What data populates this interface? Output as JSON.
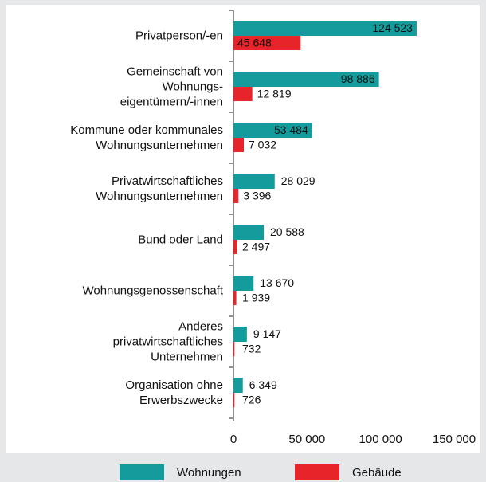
{
  "chart_data": {
    "type": "bar",
    "orientation": "horizontal",
    "categories": [
      "Privatperson/-en",
      "Gemeinschaft von\nWohnungs-\neigentümern/-innen",
      "Kommune oder kommunales\nWohnungsunternehmen",
      "Privatwirtschaftliches\nWohnungsunternehmen",
      "Bund oder Land",
      "Wohnungsgenossenschaft",
      "Anderes\nprivatwirtschaftliches\nUnternehmen",
      "Organisation ohne\nErwerbszwecke"
    ],
    "series": [
      {
        "name": "Wohnungen",
        "color": "#149c9c",
        "values": [
          124523,
          98886,
          53484,
          28029,
          20588,
          13670,
          9147,
          6349
        ],
        "value_labels": [
          "124 523",
          "98 886",
          "53 484",
          "28 029",
          "20 588",
          "13 670",
          "9 147",
          "6 349"
        ]
      },
      {
        "name": "Gebäude",
        "color": "#e8242b",
        "values": [
          45648,
          12819,
          7032,
          3396,
          2497,
          1939,
          732,
          726
        ],
        "value_labels": [
          "45 648",
          "12 819",
          "7 032",
          "3 396",
          "2 497",
          "1 939",
          "732",
          "726"
        ]
      }
    ],
    "xlim": [
      0,
      150000
    ],
    "xticks": [
      0,
      {
        "value": 50000,
        "label": "50 000"
      },
      {
        "value": 100000,
        "label": "100 000"
      },
      {
        "value": 150000,
        "label": "150 000"
      }
    ],
    "legend": "bottom"
  }
}
